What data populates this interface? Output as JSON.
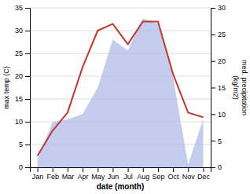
{
  "chart_data": {
    "type": "line",
    "categories": [
      "Jan",
      "Feb",
      "Mar",
      "Apr",
      "May",
      "Jun",
      "Jul",
      "Aug",
      "Sep",
      "Oct",
      "Nov",
      "Dec"
    ],
    "series": [
      {
        "type": "area",
        "axis": "y2",
        "color": "#b0bce8",
        "values": [
          1.5,
          8.5,
          9.0,
          10.0,
          15.0,
          24.0,
          22.0,
          28.0,
          27.0,
          17.0,
          0.5,
          9.0
        ]
      },
      {
        "type": "line",
        "color": "#c0392b",
        "values": [
          2.5,
          8.0,
          12.0,
          22.0,
          30.0,
          31.5,
          27.0,
          32.0,
          32.0,
          20.5,
          12.0,
          11.0
        ]
      }
    ],
    "ylim": [
      0,
      35
    ],
    "yticks": [
      0,
      5,
      10,
      15,
      20,
      25,
      30,
      35
    ],
    "y2lim": [
      0,
      30
    ],
    "y2ticks": [
      0,
      5,
      10,
      15,
      20,
      25,
      30
    ],
    "xlabel": "date (month)",
    "ylabel": "max temp (C)",
    "y2label": "med. precipitation\n(kg/m2)",
    "grid": true
  }
}
